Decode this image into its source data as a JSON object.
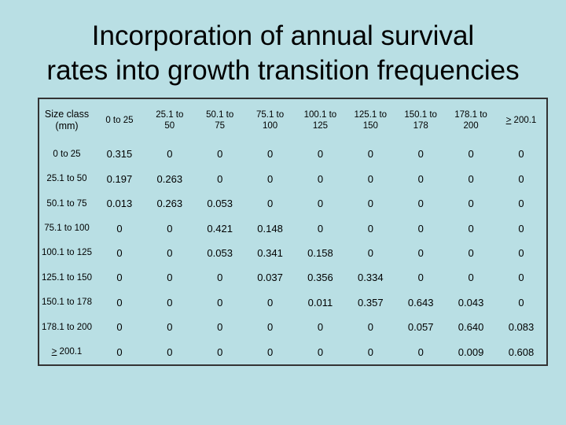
{
  "title_lines": [
    "Incorporation of annual survival",
    "rates into growth transition frequencies"
  ],
  "table": {
    "corner_label": [
      "Size class",
      "(mm)"
    ],
    "columns": [
      [
        "0 to 25"
      ],
      [
        "25.1 to",
        "50"
      ],
      [
        "50.1 to",
        "75"
      ],
      [
        "75.1 to",
        "100"
      ],
      [
        "100.1 to",
        "125"
      ],
      [
        "125.1 to",
        "150"
      ],
      [
        "150.1 to",
        "178"
      ],
      [
        "178.1 to",
        "200"
      ],
      [
        "> 200.1"
      ]
    ],
    "rows": [
      {
        "label": "0 to 25",
        "values": [
          "0.315",
          "0",
          "0",
          "0",
          "0",
          "0",
          "0",
          "0",
          "0"
        ]
      },
      {
        "label": "25.1 to 50",
        "values": [
          "0.197",
          "0.263",
          "0",
          "0",
          "0",
          "0",
          "0",
          "0",
          "0"
        ]
      },
      {
        "label": "50.1 to 75",
        "values": [
          "0.013",
          "0.263",
          "0.053",
          "0",
          "0",
          "0",
          "0",
          "0",
          "0"
        ]
      },
      {
        "label": "75.1 to 100",
        "values": [
          "0",
          "0",
          "0.421",
          "0.148",
          "0",
          "0",
          "0",
          "0",
          "0"
        ]
      },
      {
        "label": "100.1 to 125",
        "values": [
          "0",
          "0",
          "0.053",
          "0.341",
          "0.158",
          "0",
          "0",
          "0",
          "0"
        ]
      },
      {
        "label": "125.1 to 150",
        "values": [
          "0",
          "0",
          "0",
          "0.037",
          "0.356",
          "0.334",
          "0",
          "0",
          "0"
        ]
      },
      {
        "label": "150.1 to 178",
        "values": [
          "0",
          "0",
          "0",
          "0",
          "0.011",
          "0.357",
          "0.643",
          "0.043",
          "0"
        ]
      },
      {
        "label": "178.1 to 200",
        "values": [
          "0",
          "0",
          "0",
          "0",
          "0",
          "0",
          "0.057",
          "0.640",
          "0.083"
        ]
      },
      {
        "label": "> 200.1",
        "values": [
          "0",
          "0",
          "0",
          "0",
          "0",
          "0",
          "0",
          "0.009",
          "0.608"
        ]
      }
    ]
  }
}
